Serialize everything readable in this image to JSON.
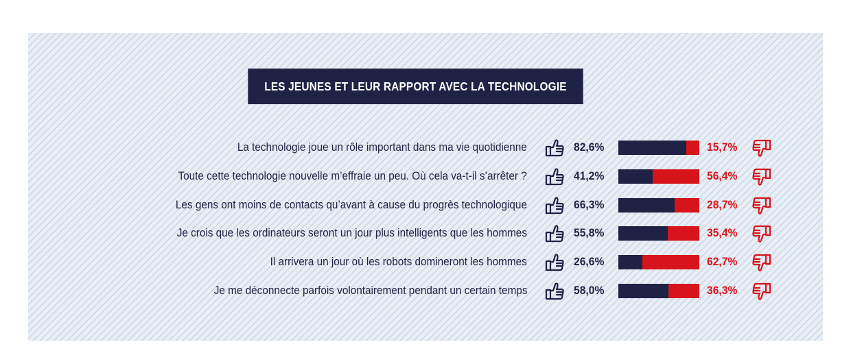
{
  "title": "LES JEUNES ET LEUR RAPPORT AVEC LA TECHNOLOGIE",
  "colors": {
    "agree": "#1e2244",
    "disagree": "#d7131b",
    "background": "#e9eef5"
  },
  "icons": {
    "agree": "thumbs-up-icon",
    "disagree": "thumbs-down-icon"
  },
  "chart_data": {
    "type": "bar",
    "orientation": "horizontal-stacked",
    "categories": [
      "La technologie joue un rôle important dans ma vie quotidienne",
      "Toute cette technologie nouvelle m’effraie un peu. Où cela va-t-il s’arrêter ?",
      "Les gens ont moins de contacts qu’avant à cause du progrès technologique",
      "Je crois que les ordinateurs seront un jour plus intelligents que les hommes",
      "Il arrivera un jour où les robots domineront les hommes",
      "Je me déconnecte parfois volontairement pendant un certain temps"
    ],
    "series": [
      {
        "values": [
          82.6,
          41.2,
          66.3,
          55.8,
          26.6,
          58.0
        ],
        "labels": [
          "82,6%",
          "41,2%",
          "66,3%",
          "55,8%",
          "26,6%",
          "58,0%"
        ]
      },
      {
        "values": [
          15.7,
          56.4,
          28.7,
          35.4,
          62.7,
          36.3
        ],
        "labels": [
          "15,7%",
          "56,4%",
          "28,7%",
          "35,4%",
          "62,7%",
          "36,3%"
        ]
      }
    ]
  }
}
